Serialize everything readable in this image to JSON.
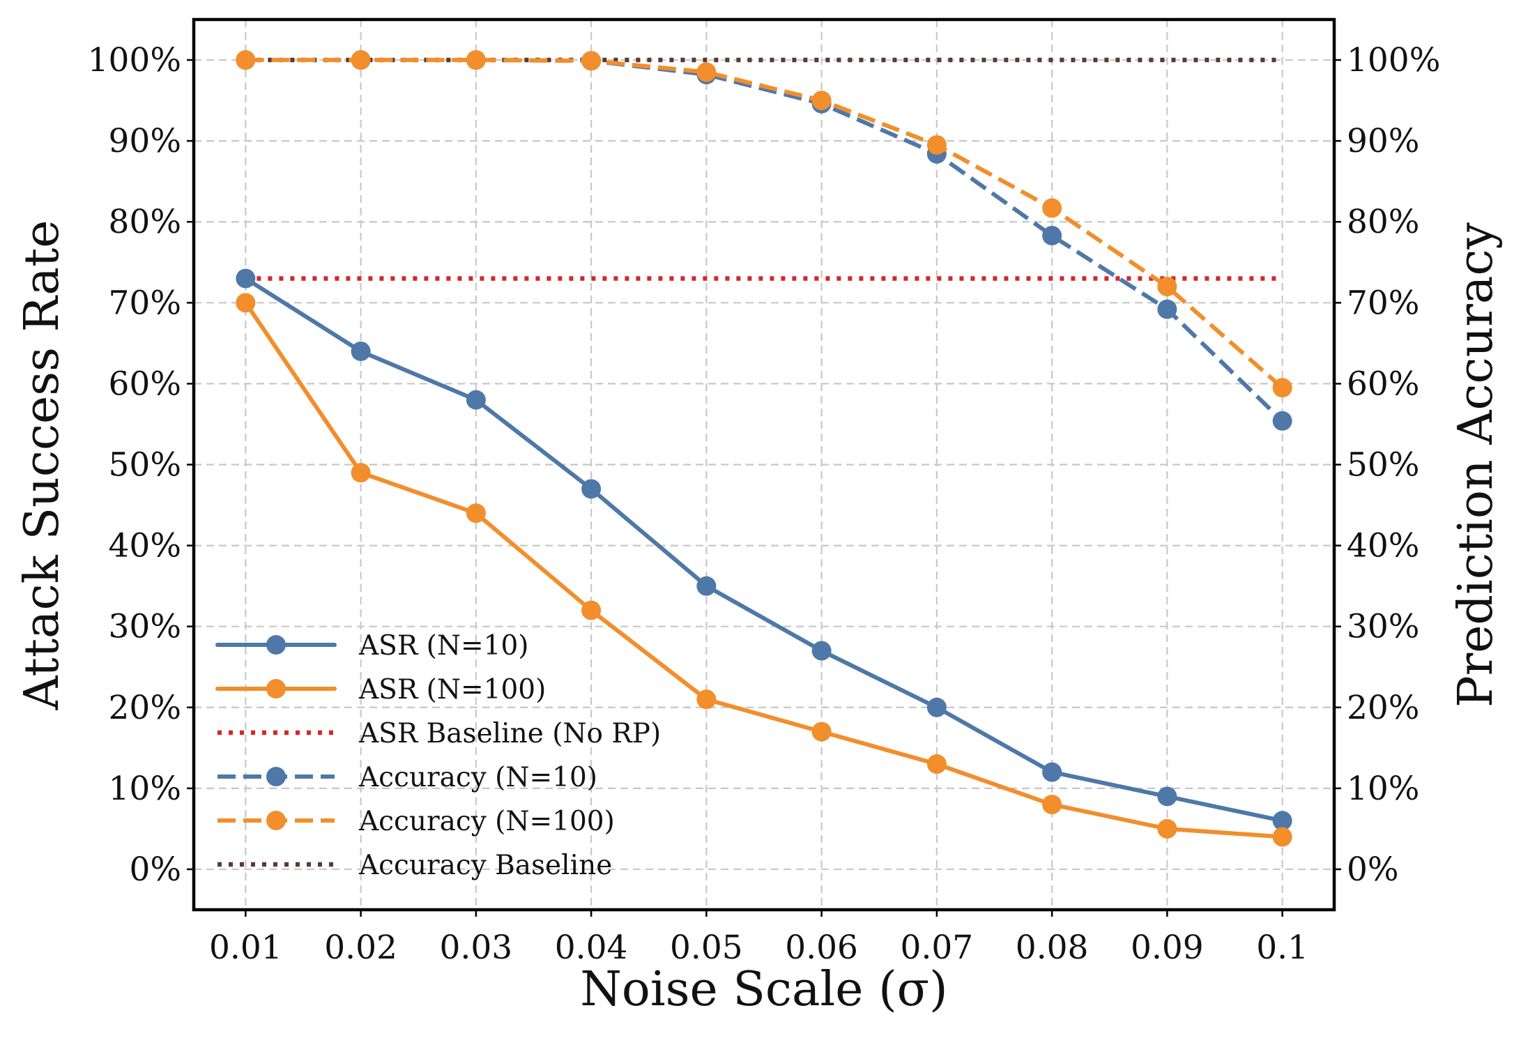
{
  "chart_data": {
    "type": "line",
    "title": "",
    "xlabel": "Noise Scale (σ)",
    "ylabel_left": "Attack Success Rate",
    "ylabel_right": "Prediction Accuracy",
    "x": [
      0.01,
      0.02,
      0.03,
      0.04,
      0.05,
      0.06,
      0.07,
      0.08,
      0.09,
      0.1
    ],
    "x_tick_labels": [
      "0.01",
      "0.02",
      "0.03",
      "0.04",
      "0.05",
      "0.06",
      "0.07",
      "0.08",
      "0.09",
      "0.1"
    ],
    "y_tick_values": [
      0,
      10,
      20,
      30,
      40,
      50,
      60,
      70,
      80,
      90,
      100
    ],
    "y_tick_labels_left": [
      "0%",
      "10%",
      "20%",
      "30%",
      "40%",
      "50%",
      "60%",
      "70%",
      "80%",
      "90%",
      "100%"
    ],
    "y_tick_labels_right": [
      "0%",
      "10%",
      "20%",
      "30%",
      "40%",
      "50%",
      "60%",
      "70%",
      "80%",
      "90%",
      "100%"
    ],
    "ylim": [
      -5,
      105
    ],
    "xlim_index": [
      -0.45,
      9.45
    ],
    "grid": true,
    "legend_position": "lower-left",
    "series": [
      {
        "name": "ASR (N=10)",
        "axis": "left",
        "style": "solid",
        "marker": true,
        "color": "#4e78a8",
        "values": [
          73,
          64,
          58,
          47,
          35,
          27,
          20,
          12,
          9,
          6
        ]
      },
      {
        "name": "ASR (N=100)",
        "axis": "left",
        "style": "solid",
        "marker": true,
        "color": "#f28e2b",
        "values": [
          70,
          49,
          44,
          32,
          21,
          17,
          13,
          8,
          5,
          4
        ]
      },
      {
        "name": "ASR Baseline (No RP)",
        "axis": "left",
        "style": "dotted-red",
        "marker": false,
        "color": "#d62728",
        "values": [
          73,
          73,
          73,
          73,
          73,
          73,
          73,
          73,
          73,
          73
        ]
      },
      {
        "name": "Accuracy (N=10)",
        "axis": "right",
        "style": "dashed",
        "marker": true,
        "color": "#4e78a8",
        "values": [
          100,
          100,
          100,
          99.9,
          98.2,
          94.6,
          88.4,
          78.3,
          69.2,
          55.4
        ]
      },
      {
        "name": "Accuracy (N=100)",
        "axis": "right",
        "style": "dashed",
        "marker": true,
        "color": "#f28e2b",
        "values": [
          100,
          100,
          100,
          99.9,
          98.5,
          95.0,
          89.5,
          81.7,
          72.0,
          59.5
        ]
      },
      {
        "name": "Accuracy Baseline",
        "axis": "right",
        "style": "dotted-brown",
        "marker": false,
        "color": "#5b3a33",
        "values": [
          100,
          100,
          100,
          100,
          100,
          100,
          100,
          100,
          100,
          100
        ]
      }
    ]
  }
}
